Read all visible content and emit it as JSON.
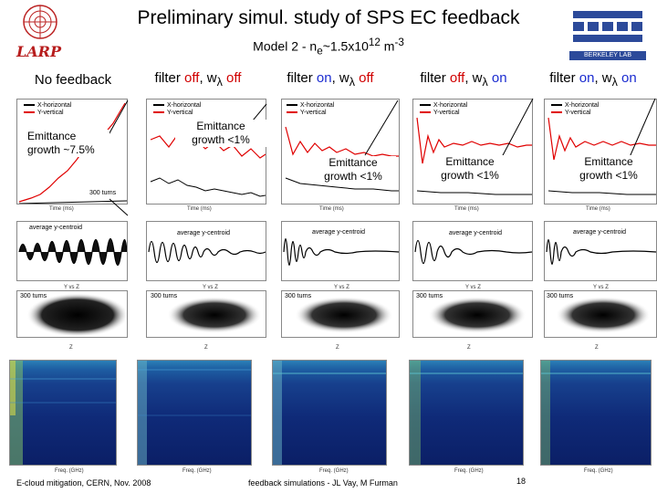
{
  "title": "Preliminary simul. study of SPS EC feedback",
  "subtitle": "Model 2 - n",
  "subtitle_sub": "e",
  "subtitle_tail": "~1.5x10",
  "subtitle_sup1": "12",
  "subtitle_tail2": " m",
  "subtitle_sup2": "-3",
  "logos": {
    "left": "LARP",
    "right": "BERKELEY LAB"
  },
  "columns": [
    {
      "label": "No feedback"
    },
    {
      "label_a": "filter ",
      "state_a": "off",
      "label_b": ", w",
      "sym": "λ",
      "state_b": " off"
    },
    {
      "label_a": "filter ",
      "state_a": "on",
      "label_b": ", w",
      "sym": "λ",
      "state_b": " off"
    },
    {
      "label_a": "filter ",
      "state_a": "off",
      "label_b": ", w",
      "sym": "λ",
      "state_b": " on"
    },
    {
      "label_a": "filter ",
      "state_a": "on",
      "label_b": ", w",
      "sym": "λ",
      "state_b": " on"
    }
  ],
  "legend": {
    "x": "X-horizontal",
    "y": "Y-vertical"
  },
  "annotations": [
    {
      "line1": "Emittance",
      "line2": "growth ~7.5%"
    },
    {
      "line1": "Emittance",
      "line2": "growth <1%"
    },
    {
      "line1": "Emittance",
      "line2": "growth <1%"
    },
    {
      "line1": "Emittance",
      "line2": "growth <1%"
    },
    {
      "line1": "Emittance",
      "line2": "growth <1%"
    }
  ],
  "turns_label": "300 turns",
  "centroid_label": "average y-centroid",
  "yvsz_label": "Y vs Z",
  "time_label": "Time (ms)",
  "freq_label": "Freq. (GHz)",
  "z_label": "Z",
  "footer": {
    "left": "E-cloud mitigation, CERN, Nov. 2008",
    "center": "feedback simulations - JL Vay, M Furman",
    "page": "18"
  },
  "colors": {
    "red": "#d00000",
    "blue": "#1a2bd0",
    "x_line": "#000000",
    "y_line": "#e00000"
  }
}
